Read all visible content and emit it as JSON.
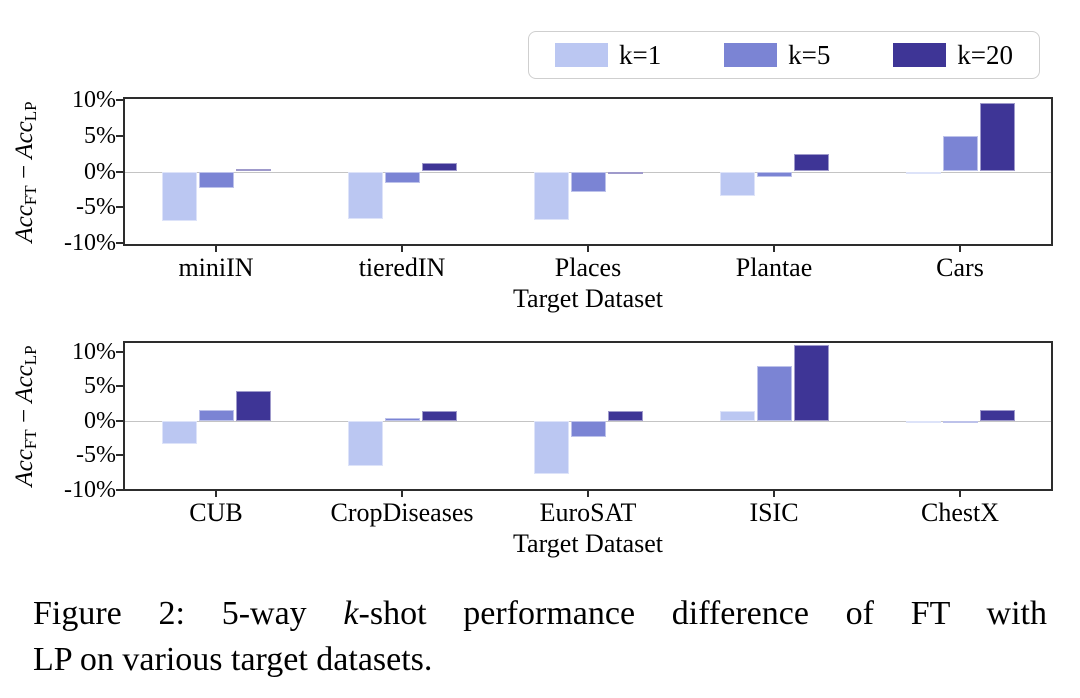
{
  "legend": {
    "items": [
      {
        "label": "k=1",
        "color": "#bbc7f2"
      },
      {
        "label": "k=5",
        "color": "#7b84d4"
      },
      {
        "label": "k=20",
        "color": "#3e3596"
      }
    ]
  },
  "axis": {
    "ylabel_parts": {
      "acc1": "Acc",
      "sub_ft": "FT",
      "minus": " − ",
      "acc2": "Acc",
      "sub_lp": "LP"
    }
  },
  "caption": {
    "line1_pre": "Figure 2: 5-way",
    "line1_k": "k",
    "line1_post": "-shot performance difference of FT with",
    "line2": "LP on various target datasets."
  },
  "chart_data": [
    {
      "type": "bar",
      "title": "",
      "xlabel": "Target Dataset",
      "ylabel": "Acc_FT - Acc_LP",
      "categories": [
        "miniIN",
        "tieredIN",
        "Places",
        "Plantae",
        "Cars"
      ],
      "series": [
        {
          "name": "k=1",
          "color": "#bbc7f2",
          "values": [
            -6.9,
            -6.7,
            -6.8,
            -3.4,
            -0.3
          ]
        },
        {
          "name": "k=5",
          "color": "#7b84d4",
          "values": [
            -2.3,
            -1.6,
            -2.8,
            -0.8,
            5.0
          ]
        },
        {
          "name": "k=20",
          "color": "#3e3596",
          "values": [
            0.4,
            1.2,
            -0.3,
            2.5,
            9.6
          ]
        }
      ],
      "yticks": [
        10,
        5,
        0,
        -5,
        -10
      ],
      "ytick_labels": [
        "10%",
        "5%",
        "0%",
        "-5%",
        "-10%"
      ],
      "ylim": [
        -10.4,
        10.4
      ],
      "grid": false,
      "zero_line": true,
      "legend_position": "top-right-above-axes"
    },
    {
      "type": "bar",
      "title": "",
      "xlabel": "Target Dataset",
      "ylabel": "Acc_FT - Acc_LP",
      "categories": [
        "CUB",
        "CropDiseases",
        "EuroSAT",
        "ISIC",
        "ChestX"
      ],
      "series": [
        {
          "name": "k=1",
          "color": "#bbc7f2",
          "values": [
            -3.3,
            -6.5,
            -7.8,
            1.4,
            -0.3
          ]
        },
        {
          "name": "k=5",
          "color": "#7b84d4",
          "values": [
            1.5,
            0.4,
            -2.3,
            7.9,
            -0.1
          ]
        },
        {
          "name": "k=20",
          "color": "#3e3596",
          "values": [
            4.4,
            1.4,
            1.4,
            11.0,
            1.6
          ]
        }
      ],
      "yticks": [
        10,
        5,
        0,
        -5,
        -10
      ],
      "ytick_labels": [
        "10%",
        "5%",
        "0%",
        "-5%",
        "-10%"
      ],
      "ylim": [
        -10.2,
        11.6
      ],
      "grid": false,
      "zero_line": true,
      "legend_position": "shared"
    }
  ]
}
